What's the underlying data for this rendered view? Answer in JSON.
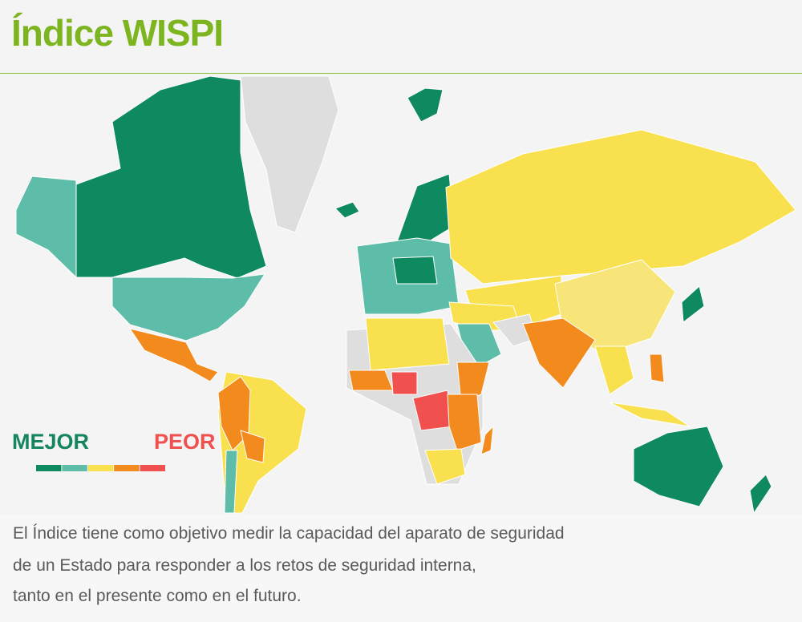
{
  "header": {
    "title": "Índice WISPI"
  },
  "legend": {
    "better": "MEJOR",
    "worse": "PEOR",
    "colors": [
      "#0f8a60",
      "#5ebda8",
      "#f8e04e",
      "#f28a1d",
      "#f0514f"
    ]
  },
  "caption": {
    "lines": [
      "El Índice tiene como objetivo medir la capacidad del aparato de seguridad",
      "de un Estado para responder a los retos de seguridad interna,",
      "tanto en el presente como en el futuro."
    ]
  }
}
